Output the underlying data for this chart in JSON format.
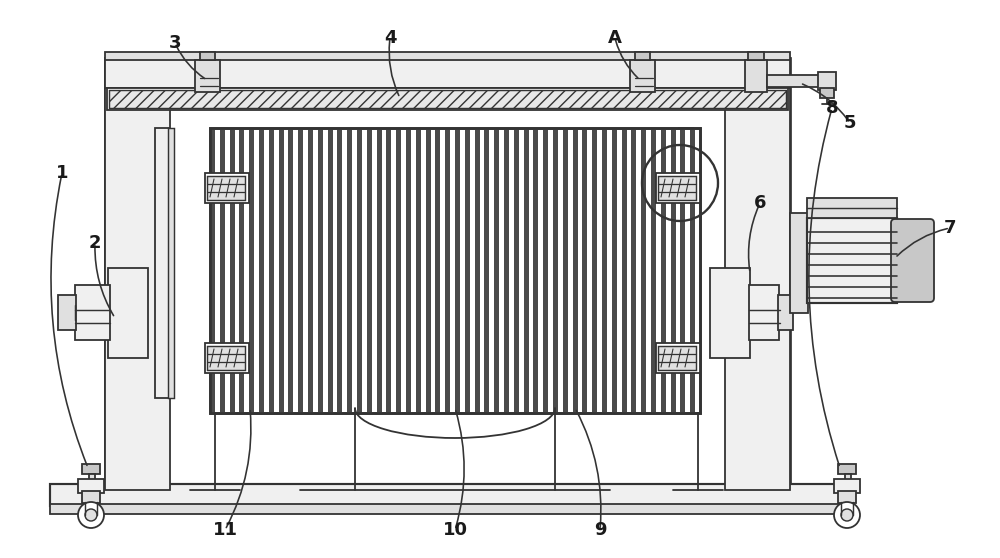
{
  "bg_color": "#ffffff",
  "lc": "#333333",
  "lw": 1.3,
  "fill_light": "#f0f0f0",
  "fill_mid": "#e0e0e0",
  "fill_dark": "#c8c8c8",
  "fill_stripe": "#4a4a4a",
  "fill_white": "#ffffff"
}
